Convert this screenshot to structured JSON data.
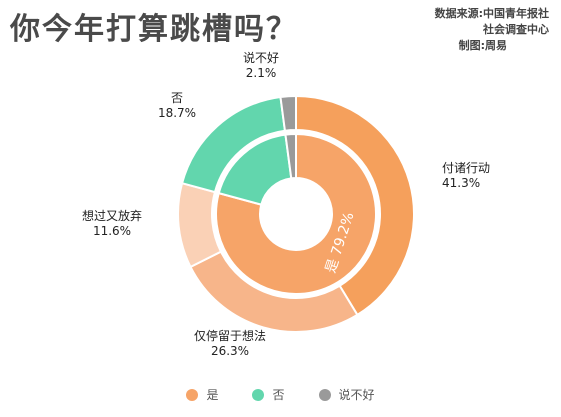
{
  "title": "你今年打算跳槽吗？",
  "source": {
    "line1": "数据来源:中国青年报社",
    "line2": "社会调查中心",
    "line3": "制图:周易"
  },
  "chart_data": {
    "type": "pie",
    "subtype": "nested-donut",
    "outer": [
      {
        "label": "付诸行动",
        "value": 41.3,
        "display": "41.3%",
        "group": "是",
        "color": "#F5A05C"
      },
      {
        "label": "仅停留于想法",
        "value": 26.3,
        "display": "26.3%",
        "group": "是",
        "color": "#F7B58A"
      },
      {
        "label": "想过又放弃",
        "value": 11.6,
        "display": "11.6%",
        "group": "是",
        "color": "#FAD1B6"
      },
      {
        "label": "否",
        "value": 18.7,
        "display": "18.7%",
        "group": "否",
        "color": "#62D6AD"
      },
      {
        "label": "说不好",
        "value": 2.1,
        "display": "2.1%",
        "group": "说不好",
        "color": "#9A9A9A"
      }
    ],
    "inner": [
      {
        "label": "是",
        "value": 79.2,
        "display": "是 79.2%",
        "color": "#F6A468"
      },
      {
        "label": "否",
        "value": 18.7,
        "display": "",
        "color": "#62D6AD"
      },
      {
        "label": "说不好",
        "value": 2.1,
        "display": "",
        "color": "#9A9A9A"
      }
    ],
    "legend": [
      {
        "label": "是",
        "color": "#F6A468"
      },
      {
        "label": "否",
        "color": "#62D6AD"
      },
      {
        "label": "说不好",
        "color": "#9A9A9A"
      }
    ],
    "legend_position": "bottom-center"
  }
}
